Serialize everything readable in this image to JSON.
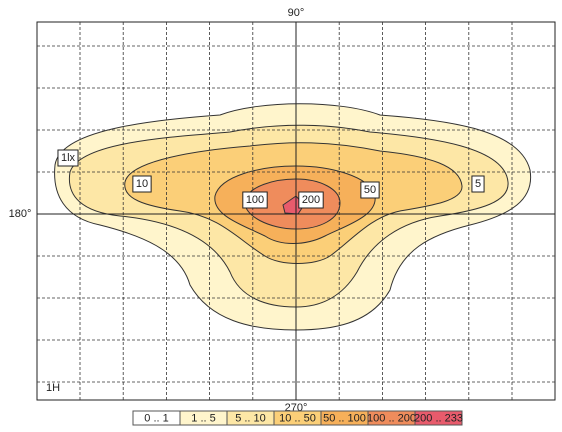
{
  "chart_data": {
    "type": "contour",
    "axis_labels": {
      "top": "90°",
      "left": "180°",
      "bottom": "270°"
    },
    "corner_label": "1H",
    "levels": [
      1,
      5,
      10,
      50,
      100,
      200
    ],
    "value_labels": [
      "1lx",
      "5",
      "10",
      "50",
      "100",
      "200"
    ],
    "bins": [
      0,
      1,
      5,
      10,
      50,
      100,
      200,
      233
    ],
    "legend_labels": [
      "0 .. 1",
      "1 .. 5",
      "5 .. 10",
      "10 .. 50",
      "50 .. 100",
      "100 .. 200",
      "200 .. 233"
    ],
    "colors": [
      "#ffffff",
      "#fff5cc",
      "#fde7a6",
      "#fbcf78",
      "#f6b05a",
      "#ef8c5c",
      "#e85b6c"
    ],
    "grid": true
  }
}
